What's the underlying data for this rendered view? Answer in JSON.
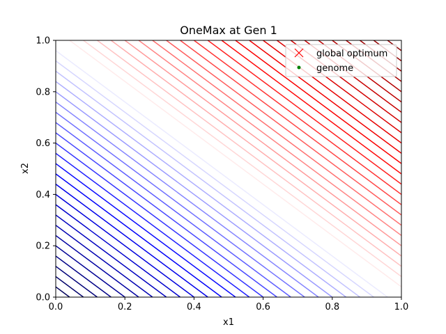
{
  "chart_data": {
    "type": "contour",
    "title": "OneMax at Gen 1",
    "xlabel": "x1",
    "ylabel": "x2",
    "xlim": [
      0,
      1
    ],
    "ylim": [
      0,
      1
    ],
    "xticks": [
      "0.0",
      "0.2",
      "0.4",
      "0.6",
      "0.8",
      "1.0"
    ],
    "yticks": [
      "0.0",
      "0.2",
      "0.4",
      "0.6",
      "0.8",
      "1.0"
    ],
    "function": "x1 + x2",
    "contour_levels": {
      "min": 0.0,
      "max": 2.0,
      "step": 0.04
    },
    "colormap": "seismic (blue low, white mid, red high)",
    "legend": {
      "position": "upper right",
      "entries": [
        {
          "label": "global optimum",
          "marker": "x",
          "color": "#ff0000"
        },
        {
          "label": "genome",
          "marker": ".",
          "color": "#008000"
        }
      ]
    },
    "series": [
      {
        "name": "global optimum",
        "points": []
      },
      {
        "name": "genome",
        "points": []
      }
    ],
    "grid": false
  }
}
